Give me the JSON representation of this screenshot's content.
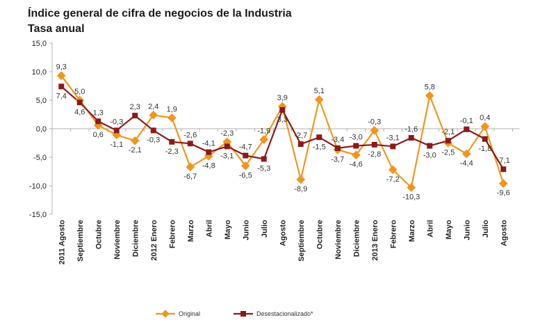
{
  "title": "Índice general de cifra de negocios de la Industria",
  "subtitle": "Tasa anual",
  "colors": {
    "original": "#F0961E",
    "desestacionalizado": "#8B1A1A",
    "axis": "#B0B0B0"
  },
  "chart_data": {
    "type": "line",
    "title": "Índice general de cifra de negocios de la Industria",
    "subtitle": "Tasa anual",
    "categories": [
      "2011 Agosto",
      "Septiembre",
      "Octubre",
      "Noviembre",
      "Diciembre",
      "2012 Enero",
      "Febrero",
      "Marzo",
      "Abril",
      "Mayo",
      "Junio",
      "Julio",
      "Agosto",
      "Septiembre",
      "Octubre",
      "Noviembre",
      "Diciembre",
      "2013 Enero",
      "Febrero",
      "Marzo",
      "Abril",
      "Mayo",
      "Junio",
      "Julio",
      "Agosto"
    ],
    "ylim": [
      -15,
      15
    ],
    "yticks": [
      "15,0",
      "10,0",
      "5,0",
      "0,0",
      "-5,0",
      "-10,0",
      "-15,0"
    ],
    "grid": false,
    "legend": "bottom",
    "series": [
      {
        "name": "Original",
        "values": [
          9.3,
          5.0,
          0.6,
          -1.1,
          -2.1,
          2.4,
          1.9,
          -6.7,
          -4.8,
          -2.3,
          -6.5,
          -1.9,
          3.9,
          -8.9,
          5.1,
          -3.7,
          -4.6,
          -0.3,
          -7.2,
          -10.3,
          5.8,
          -2.5,
          -4.4,
          0.4,
          -9.6
        ],
        "labels": [
          "9,3",
          "5,0",
          "0,6",
          "-1,1",
          "-2,1",
          "2,4",
          "1,9",
          "-6,7",
          "-4,8",
          "-2,3",
          "-6,5",
          "-1,9",
          "3,9",
          "-8,9",
          "5,1",
          "-3,7",
          "-4,6",
          "-0,3",
          "-7,2",
          "-10,3",
          "5,8",
          "-2,5",
          "-4,4",
          "0,4",
          "-9,6"
        ]
      },
      {
        "name": "Desestacionalizado*",
        "values": [
          7.4,
          4.6,
          1.3,
          -0.3,
          2.3,
          -0.3,
          -2.3,
          -2.6,
          -4.1,
          -3.1,
          -4.7,
          -5.3,
          3.3,
          -2.7,
          -1.5,
          -3.4,
          -3.0,
          -2.8,
          -3.1,
          -1.6,
          -3.0,
          -2.1,
          -0.1,
          -1.8,
          -7.1
        ],
        "labels": [
          "7,4",
          "4,6",
          "1,3",
          "-0,3",
          "2,3",
          "-0,3",
          "-2,3",
          "-2,6",
          "-4,1",
          "-3,1",
          "-4,7",
          "-5,3",
          "3,3",
          "-2,7",
          "-1,5",
          "-3,4",
          "-3,0",
          "-2,8",
          "-3,1",
          "-1,6",
          "-3,0",
          "-2,1",
          "-0,1",
          "-1,8",
          "-7,1"
        ]
      }
    ]
  }
}
